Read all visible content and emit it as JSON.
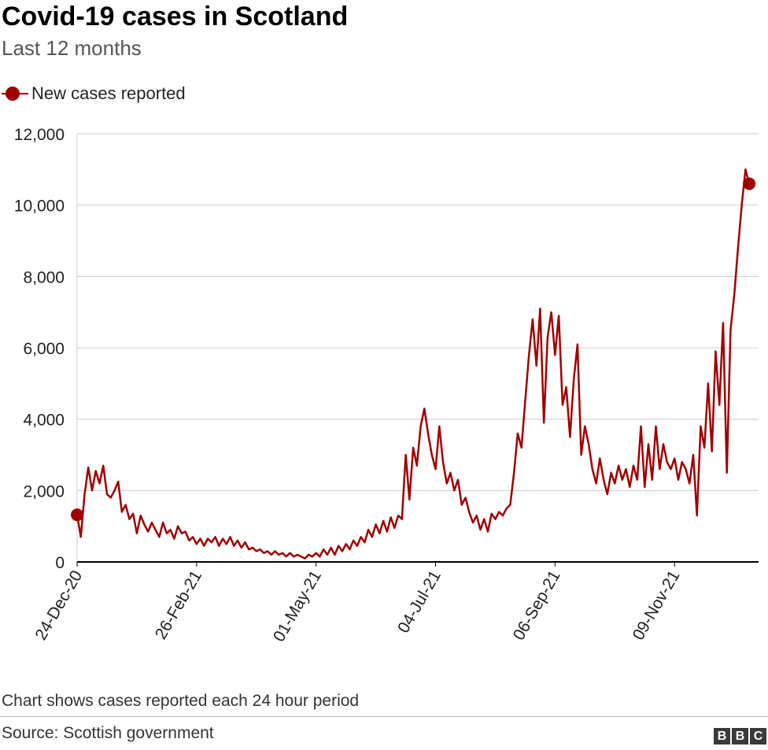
{
  "title": "Covid-19 cases in Scotland",
  "subtitle": "Last 12 months",
  "note": "Chart shows cases reported each 24 hour period",
  "source": "Source: Scottish government",
  "logo": {
    "letters": [
      "B",
      "B",
      "C"
    ]
  },
  "legend": {
    "label": "New cases reported",
    "marker": "circle-line"
  },
  "colors": {
    "series": "#a00000",
    "grid": "#cccccc",
    "axis": "#000000",
    "text": "#222222"
  },
  "chart_data": {
    "type": "line",
    "title": "Covid-19 cases in Scotland",
    "subtitle": "Last 12 months",
    "x_start": "2020-12-24",
    "x_end": "2021-12-24",
    "ylim": [
      0,
      12000
    ],
    "yticks": [
      0,
      2000,
      4000,
      6000,
      8000,
      10000,
      12000
    ],
    "ytick_labels": [
      "0",
      "2,000",
      "4,000",
      "6,000",
      "8,000",
      "10,000",
      "12,000"
    ],
    "xticks": [
      {
        "date": "2020-12-24",
        "label": "24-Dec-20"
      },
      {
        "date": "2021-02-26",
        "label": "26-Feb-21"
      },
      {
        "date": "2021-05-01",
        "label": "01-May-21"
      },
      {
        "date": "2021-07-04",
        "label": "04-Jul-21"
      },
      {
        "date": "2021-09-06",
        "label": "06-Sep-21"
      },
      {
        "date": "2021-11-09",
        "label": "09-Nov-21"
      }
    ],
    "grid": "horizontal",
    "legend_position": "top-left",
    "marker_points": [
      "first",
      "last"
    ],
    "series": [
      {
        "name": "New cases reported",
        "color": "#a00000",
        "points": [
          [
            "2020-12-24",
            1320
          ],
          [
            "2020-12-26",
            700
          ],
          [
            "2020-12-28",
            1900
          ],
          [
            "2020-12-30",
            2650
          ],
          [
            "2021-01-01",
            2000
          ],
          [
            "2021-01-03",
            2550
          ],
          [
            "2021-01-05",
            2200
          ],
          [
            "2021-01-07",
            2700
          ],
          [
            "2021-01-09",
            1900
          ],
          [
            "2021-01-11",
            1800
          ],
          [
            "2021-01-13",
            2000
          ],
          [
            "2021-01-15",
            2250
          ],
          [
            "2021-01-17",
            1400
          ],
          [
            "2021-01-19",
            1600
          ],
          [
            "2021-01-21",
            1200
          ],
          [
            "2021-01-23",
            1350
          ],
          [
            "2021-01-25",
            800
          ],
          [
            "2021-01-27",
            1300
          ],
          [
            "2021-01-29",
            1050
          ],
          [
            "2021-01-31",
            850
          ],
          [
            "2021-02-02",
            1100
          ],
          [
            "2021-02-04",
            900
          ],
          [
            "2021-02-06",
            700
          ],
          [
            "2021-02-08",
            1100
          ],
          [
            "2021-02-10",
            800
          ],
          [
            "2021-02-12",
            900
          ],
          [
            "2021-02-14",
            650
          ],
          [
            "2021-02-16",
            1000
          ],
          [
            "2021-02-18",
            800
          ],
          [
            "2021-02-20",
            850
          ],
          [
            "2021-02-22",
            600
          ],
          [
            "2021-02-24",
            700
          ],
          [
            "2021-02-26",
            500
          ],
          [
            "2021-02-28",
            650
          ],
          [
            "2021-03-02",
            450
          ],
          [
            "2021-03-04",
            650
          ],
          [
            "2021-03-06",
            550
          ],
          [
            "2021-03-08",
            700
          ],
          [
            "2021-03-10",
            450
          ],
          [
            "2021-03-12",
            650
          ],
          [
            "2021-03-14",
            500
          ],
          [
            "2021-03-16",
            700
          ],
          [
            "2021-03-18",
            450
          ],
          [
            "2021-03-20",
            600
          ],
          [
            "2021-03-22",
            400
          ],
          [
            "2021-03-24",
            550
          ],
          [
            "2021-03-26",
            350
          ],
          [
            "2021-03-28",
            400
          ],
          [
            "2021-03-30",
            300
          ],
          [
            "2021-04-01",
            350
          ],
          [
            "2021-04-03",
            250
          ],
          [
            "2021-04-05",
            300
          ],
          [
            "2021-04-07",
            200
          ],
          [
            "2021-04-09",
            300
          ],
          [
            "2021-04-11",
            200
          ],
          [
            "2021-04-13",
            250
          ],
          [
            "2021-04-15",
            150
          ],
          [
            "2021-04-17",
            250
          ],
          [
            "2021-04-19",
            150
          ],
          [
            "2021-04-21",
            200
          ],
          [
            "2021-04-23",
            150
          ],
          [
            "2021-04-25",
            100
          ],
          [
            "2021-04-27",
            200
          ],
          [
            "2021-04-29",
            150
          ],
          [
            "2021-05-01",
            250
          ],
          [
            "2021-05-03",
            150
          ],
          [
            "2021-05-05",
            350
          ],
          [
            "2021-05-07",
            200
          ],
          [
            "2021-05-09",
            400
          ],
          [
            "2021-05-11",
            200
          ],
          [
            "2021-05-13",
            450
          ],
          [
            "2021-05-15",
            300
          ],
          [
            "2021-05-17",
            500
          ],
          [
            "2021-05-19",
            350
          ],
          [
            "2021-05-21",
            600
          ],
          [
            "2021-05-23",
            450
          ],
          [
            "2021-05-25",
            700
          ],
          [
            "2021-05-27",
            550
          ],
          [
            "2021-05-29",
            900
          ],
          [
            "2021-05-31",
            700
          ],
          [
            "2021-06-02",
            1050
          ],
          [
            "2021-06-04",
            800
          ],
          [
            "2021-06-06",
            1150
          ],
          [
            "2021-06-08",
            850
          ],
          [
            "2021-06-10",
            1250
          ],
          [
            "2021-06-12",
            950
          ],
          [
            "2021-06-14",
            1300
          ],
          [
            "2021-06-16",
            1200
          ],
          [
            "2021-06-18",
            3000
          ],
          [
            "2021-06-20",
            1750
          ],
          [
            "2021-06-22",
            3200
          ],
          [
            "2021-06-24",
            2700
          ],
          [
            "2021-06-26",
            3800
          ],
          [
            "2021-06-28",
            4300
          ],
          [
            "2021-06-30",
            3600
          ],
          [
            "2021-07-02",
            3000
          ],
          [
            "2021-07-04",
            2600
          ],
          [
            "2021-07-06",
            3800
          ],
          [
            "2021-07-08",
            2800
          ],
          [
            "2021-07-10",
            2200
          ],
          [
            "2021-07-12",
            2500
          ],
          [
            "2021-07-14",
            2000
          ],
          [
            "2021-07-16",
            2300
          ],
          [
            "2021-07-18",
            1600
          ],
          [
            "2021-07-20",
            1800
          ],
          [
            "2021-07-22",
            1400
          ],
          [
            "2021-07-24",
            1100
          ],
          [
            "2021-07-26",
            1300
          ],
          [
            "2021-07-28",
            900
          ],
          [
            "2021-07-30",
            1200
          ],
          [
            "2021-08-01",
            850
          ],
          [
            "2021-08-03",
            1350
          ],
          [
            "2021-08-05",
            1200
          ],
          [
            "2021-08-07",
            1400
          ],
          [
            "2021-08-09",
            1300
          ],
          [
            "2021-08-11",
            1500
          ],
          [
            "2021-08-13",
            1600
          ],
          [
            "2021-08-15",
            2500
          ],
          [
            "2021-08-17",
            3600
          ],
          [
            "2021-08-19",
            3200
          ],
          [
            "2021-08-21",
            4500
          ],
          [
            "2021-08-23",
            5800
          ],
          [
            "2021-08-25",
            6800
          ],
          [
            "2021-08-27",
            5500
          ],
          [
            "2021-08-29",
            7100
          ],
          [
            "2021-08-31",
            3900
          ],
          [
            "2021-09-02",
            6300
          ],
          [
            "2021-09-04",
            7000
          ],
          [
            "2021-09-06",
            5800
          ],
          [
            "2021-09-08",
            6900
          ],
          [
            "2021-09-10",
            4400
          ],
          [
            "2021-09-12",
            4900
          ],
          [
            "2021-09-14",
            3500
          ],
          [
            "2021-09-16",
            5100
          ],
          [
            "2021-09-18",
            6100
          ],
          [
            "2021-09-20",
            3000
          ],
          [
            "2021-09-22",
            3800
          ],
          [
            "2021-09-24",
            3300
          ],
          [
            "2021-09-26",
            2600
          ],
          [
            "2021-09-28",
            2200
          ],
          [
            "2021-09-30",
            2900
          ],
          [
            "2021-10-02",
            2300
          ],
          [
            "2021-10-04",
            1900
          ],
          [
            "2021-10-06",
            2500
          ],
          [
            "2021-10-08",
            2200
          ],
          [
            "2021-10-10",
            2700
          ],
          [
            "2021-10-12",
            2300
          ],
          [
            "2021-10-14",
            2600
          ],
          [
            "2021-10-16",
            2100
          ],
          [
            "2021-10-18",
            2700
          ],
          [
            "2021-10-20",
            2300
          ],
          [
            "2021-10-22",
            3800
          ],
          [
            "2021-10-24",
            2100
          ],
          [
            "2021-10-26",
            3300
          ],
          [
            "2021-10-28",
            2300
          ],
          [
            "2021-10-30",
            3800
          ],
          [
            "2021-11-01",
            2600
          ],
          [
            "2021-11-03",
            3300
          ],
          [
            "2021-11-05",
            2800
          ],
          [
            "2021-11-07",
            2600
          ],
          [
            "2021-11-09",
            2900
          ],
          [
            "2021-11-11",
            2300
          ],
          [
            "2021-11-13",
            2800
          ],
          [
            "2021-11-15",
            2600
          ],
          [
            "2021-11-17",
            2200
          ],
          [
            "2021-11-19",
            3000
          ],
          [
            "2021-11-21",
            1300
          ],
          [
            "2021-11-23",
            3800
          ],
          [
            "2021-11-25",
            3200
          ],
          [
            "2021-11-27",
            5000
          ],
          [
            "2021-11-29",
            3100
          ],
          [
            "2021-12-01",
            5900
          ],
          [
            "2021-12-03",
            4400
          ],
          [
            "2021-12-05",
            6700
          ],
          [
            "2021-12-07",
            2500
          ],
          [
            "2021-12-09",
            6500
          ],
          [
            "2021-12-11",
            7500
          ],
          [
            "2021-12-13",
            8800
          ],
          [
            "2021-12-15",
            10000
          ],
          [
            "2021-12-17",
            11000
          ],
          [
            "2021-12-19",
            10600
          ]
        ]
      }
    ]
  }
}
